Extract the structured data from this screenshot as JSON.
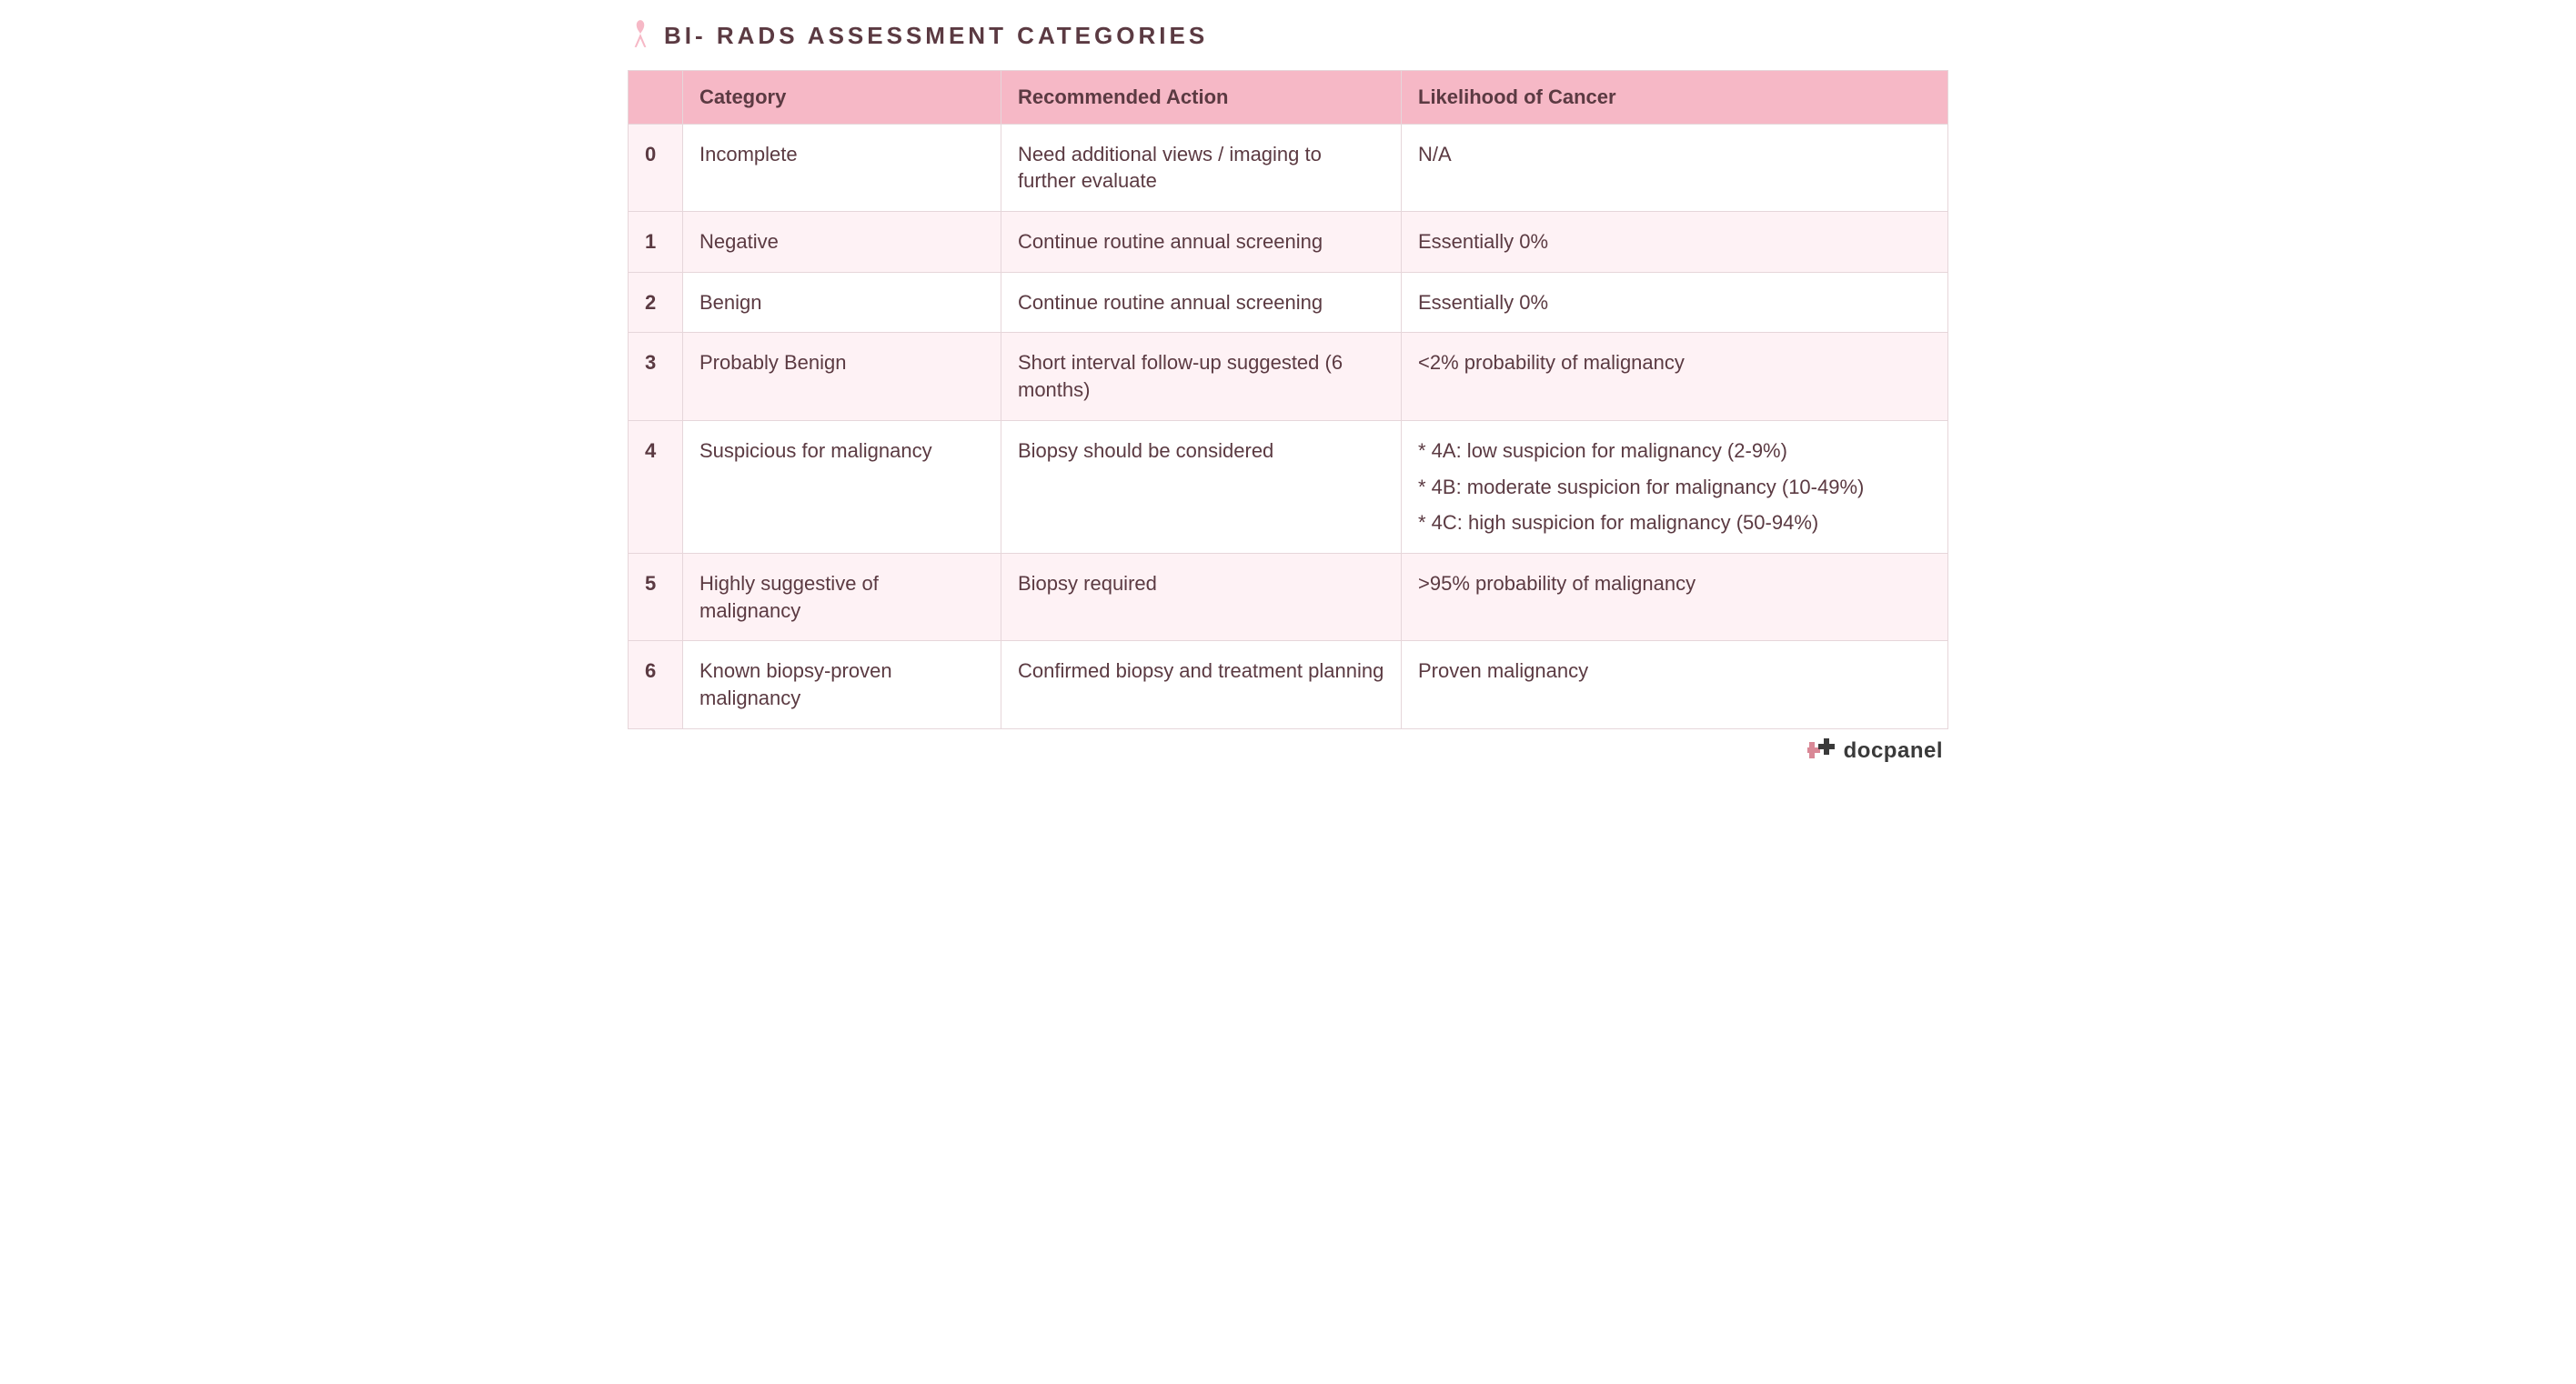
{
  "title": "BI- RADS ASSESSMENT CATEGORIES",
  "colors": {
    "header_bg": "#f6b8c6",
    "numcol_bg": "#fef2f5",
    "row_alt_bg": "#fef2f5",
    "row_bg": "#ffffff",
    "border": "#e6d6da",
    "text": "#5b3a42",
    "ribbon": "#f6b8c6",
    "logo_cross1": "#d98896",
    "logo_cross2": "#3a3a3a"
  },
  "columns": [
    "",
    "Category",
    "Recommended Action",
    "Likelihood of Cancer"
  ],
  "rows": [
    {
      "num": "0",
      "category": "Incomplete",
      "action": "Need additional views / imaging to further evaluate",
      "likelihood": "N/A"
    },
    {
      "num": "1",
      "category": "Negative",
      "action": "Continue routine annual screening",
      "likelihood": "Essentially 0%"
    },
    {
      "num": "2",
      "category": "Benign",
      "action": "Continue routine annual screening",
      "likelihood": "Essentially 0%"
    },
    {
      "num": "3",
      "category": "Probably Benign",
      "action": "Short interval follow-up suggested (6 months)",
      "likelihood": "<2% probability of malignancy"
    },
    {
      "num": "4",
      "category": "Suspicious for malignancy",
      "action": "Biopsy should be considered",
      "likelihood_lines": [
        "* 4A: low suspicion for malignancy (2-9%)",
        "* 4B: moderate suspicion for malignancy (10-49%)",
        "* 4C: high suspicion for malignancy (50-94%)"
      ]
    },
    {
      "num": "5",
      "category": "Highly suggestive of malignancy",
      "action": "Biopsy required",
      "likelihood": ">95% probability of malignancy"
    },
    {
      "num": "6",
      "category": "Known biopsy-proven malignancy",
      "action": "Confirmed biopsy and treatment planning",
      "likelihood": "Proven malignancy"
    }
  ],
  "footer_logo_text": "docpanel"
}
